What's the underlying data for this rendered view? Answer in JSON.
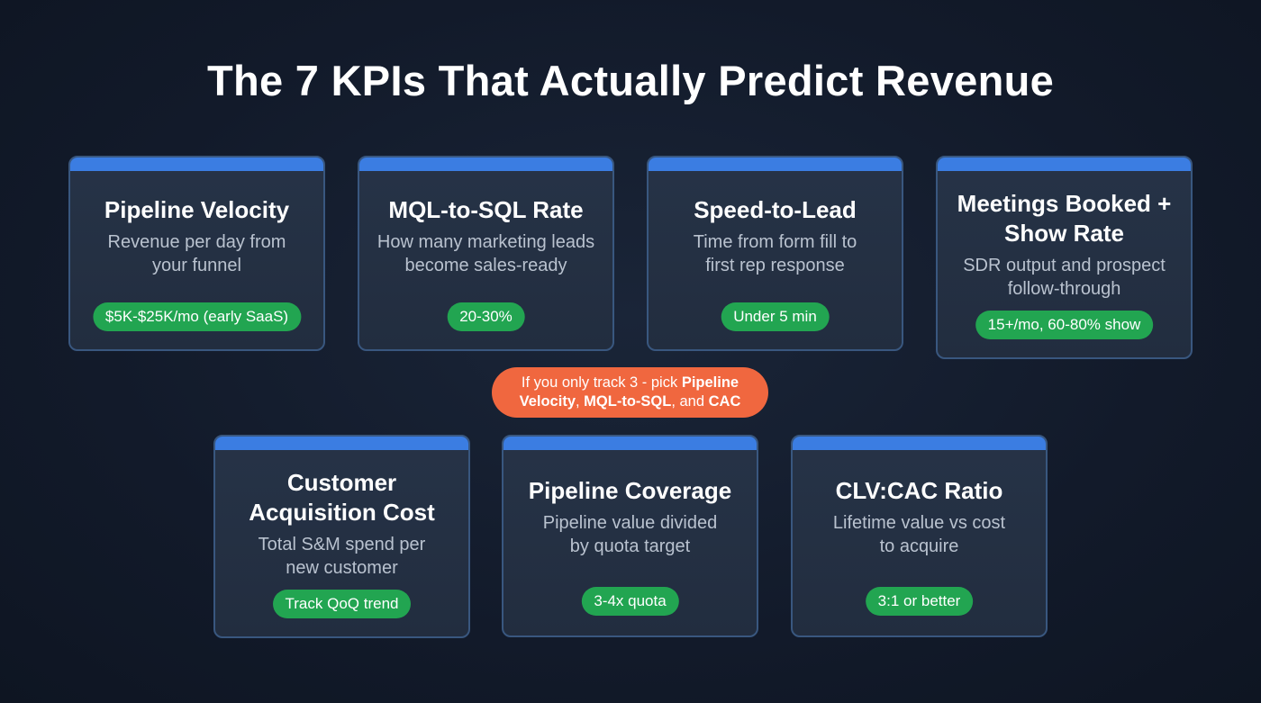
{
  "title": "The 7 KPIs That Actually Predict Revenue",
  "kpis": [
    {
      "title": "Pipeline Velocity",
      "description": "Revenue per day from your funnel",
      "benchmark": "$5K-$25K/mo (early SaaS)"
    },
    {
      "title": "MQL-to-SQL Rate",
      "description": "How many marketing leads become sales-ready",
      "benchmark": "20-30%"
    },
    {
      "title": "Speed-to-Lead",
      "description": "Time from form fill to first rep response",
      "benchmark": "Under 5 min"
    },
    {
      "title": "Meetings Booked + Show Rate",
      "description": "SDR output and prospect follow-through",
      "benchmark": "15+/mo, 60-80% show"
    },
    {
      "title": "Customer Acquisition Cost",
      "description": "Total S&M spend per new customer",
      "benchmark": "Track QoQ trend"
    },
    {
      "title": "Pipeline Coverage",
      "description": "Pipeline value divided by quota target",
      "benchmark": "3-4x quota"
    },
    {
      "title": "CLV:CAC Ratio",
      "description": "Lifetime value vs cost to acquire",
      "benchmark": "3:1 or better"
    }
  ],
  "callout": {
    "prefix": "If you only track 3 - pick ",
    "item1": "Pipeline Velocity",
    "sep1": ", ",
    "item2": "MQL-to-SQL",
    "sep2": ", and ",
    "item3": "CAC"
  },
  "colors": {
    "accent_bar": "#3b7de2",
    "badge": "#22a551",
    "callout": "#f0673f",
    "background": "#121a2a"
  }
}
